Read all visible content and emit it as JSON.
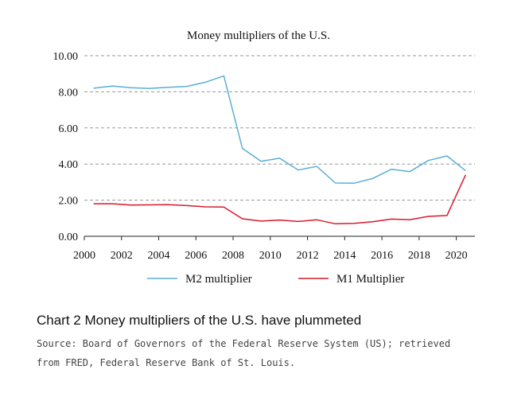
{
  "chart_data": {
    "type": "line",
    "title": "Money multipliers of the U.S.",
    "xlabel": "",
    "ylabel": "",
    "xlim": [
      2000,
      2021
    ],
    "ylim": [
      0,
      10
    ],
    "x_ticks": [
      "2000",
      "2002",
      "2004",
      "2006",
      "2008",
      "2010",
      "2012",
      "2014",
      "2016",
      "2018",
      "2020"
    ],
    "y_ticks": [
      "0.00",
      "2.00",
      "4.00",
      "6.00",
      "8.00",
      "10.00"
    ],
    "grid": true,
    "legend_position": "bottom",
    "x": [
      2000.5,
      2001.5,
      2002.5,
      2003.5,
      2004.5,
      2005.5,
      2006.5,
      2007.5,
      2008.5,
      2009.5,
      2010.5,
      2011.5,
      2012.5,
      2013.5,
      2014.5,
      2015.5,
      2016.5,
      2017.5,
      2018.5,
      2019.5,
      2020.5
    ],
    "series": [
      {
        "name": "M2 multiplier",
        "color": "#5aaed6",
        "values": [
          8.2,
          8.32,
          8.23,
          8.19,
          8.25,
          8.3,
          8.53,
          8.88,
          4.87,
          4.15,
          4.32,
          3.67,
          3.87,
          2.95,
          2.94,
          3.2,
          3.71,
          3.58,
          4.2,
          4.45,
          3.63
        ]
      },
      {
        "name": "M1 Multiplier",
        "color": "#d9182a",
        "values": [
          1.8,
          1.8,
          1.73,
          1.74,
          1.75,
          1.7,
          1.63,
          1.62,
          0.97,
          0.84,
          0.9,
          0.82,
          0.91,
          0.69,
          0.72,
          0.8,
          0.95,
          0.92,
          1.1,
          1.15,
          3.4
        ]
      }
    ]
  },
  "caption": {
    "title": "Chart 2  Money multipliers of the U.S. have plummeted",
    "source_line1": "Source: Board of Governors of the Federal Reserve System (US); retrieved",
    "source_line2": "from FRED, Federal Reserve Bank of St. Louis."
  }
}
